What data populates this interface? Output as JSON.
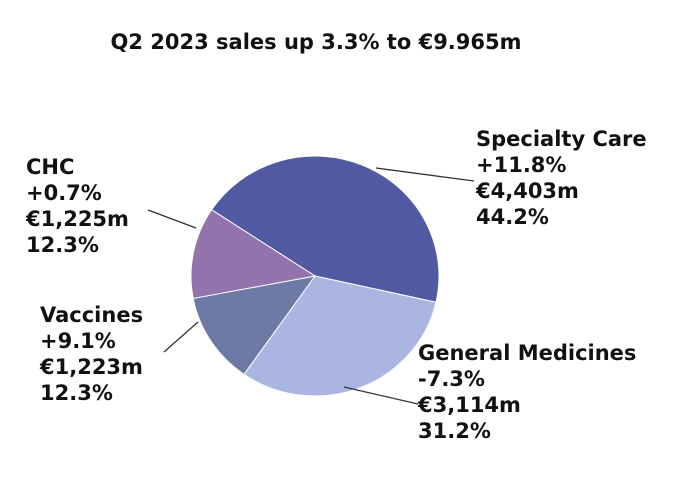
{
  "chart_data": {
    "type": "pie",
    "title": "Q2 2023 sales up 3.3% to €9.965m",
    "slices": [
      {
        "name": "Specialty Care",
        "change": "+11.8%",
        "sales": "€4,403m",
        "share_label": "44.2%",
        "value": 44.2,
        "color": "#5059a2"
      },
      {
        "name": "General Medicines",
        "change": "-7.3%",
        "sales": "€3,114m",
        "share_label": "31.2%",
        "value": 31.2,
        "color": "#aab5e2"
      },
      {
        "name": "Vaccines",
        "change": "+9.1%",
        "sales": "€1,223m",
        "share_label": "12.3%",
        "value": 12.3,
        "color": "#6d7aa6"
      },
      {
        "name": "CHC",
        "change": "+0.7%",
        "sales": "€1,225m",
        "share_label": "12.3%",
        "value": 12.3,
        "color": "#9273ac"
      }
    ],
    "start_angle_deg": -56.5,
    "direction": "clockwise"
  }
}
